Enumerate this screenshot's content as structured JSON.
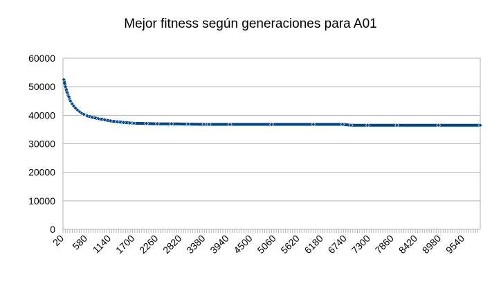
{
  "chart_data": {
    "type": "line",
    "title": "Mejor fitness según generaciones para A01",
    "xlabel": "",
    "ylabel": "",
    "ylim": [
      0,
      60000
    ],
    "yticks": [
      0,
      10000,
      20000,
      30000,
      40000,
      50000,
      60000
    ],
    "ytick_labels": [
      "0",
      "10000",
      "20000",
      "30000",
      "40000",
      "50000",
      "60000"
    ],
    "xlim": [
      0,
      10000
    ],
    "xtick_labels": [
      "20",
      "580",
      "1140",
      "1700",
      "2260",
      "2820",
      "3380",
      "3940",
      "4500",
      "5060",
      "5620",
      "6180",
      "6740",
      "7300",
      "7860",
      "8420",
      "8980",
      "9540"
    ],
    "grid": "horizontal",
    "legend": "none",
    "marker": "diamond",
    "colors": {
      "series": "#004586",
      "grid": "#b3b3b3",
      "axis": "#b3b3b3"
    },
    "series": [
      {
        "x": [
          20,
          60,
          100,
          140,
          180,
          220,
          260,
          300,
          350,
          400,
          450,
          500,
          580,
          700,
          850,
          1000,
          1140,
          1300,
          1450,
          1600,
          1700,
          2000,
          2260,
          2600,
          3000,
          3380,
          3500,
          4000,
          5000,
          6000,
          6700,
          6900,
          7300,
          8000,
          9000,
          10000
        ],
        "y": [
          52500,
          50000,
          48000,
          46500,
          45000,
          44000,
          43200,
          42500,
          41800,
          41200,
          40700,
          40300,
          39800,
          39300,
          38800,
          38400,
          38000,
          37700,
          37500,
          37300,
          37200,
          37100,
          37000,
          37000,
          36900,
          36800,
          36800,
          36800,
          36800,
          36800,
          36800,
          36500,
          36500,
          36500,
          36500,
          36500
        ]
      }
    ]
  }
}
